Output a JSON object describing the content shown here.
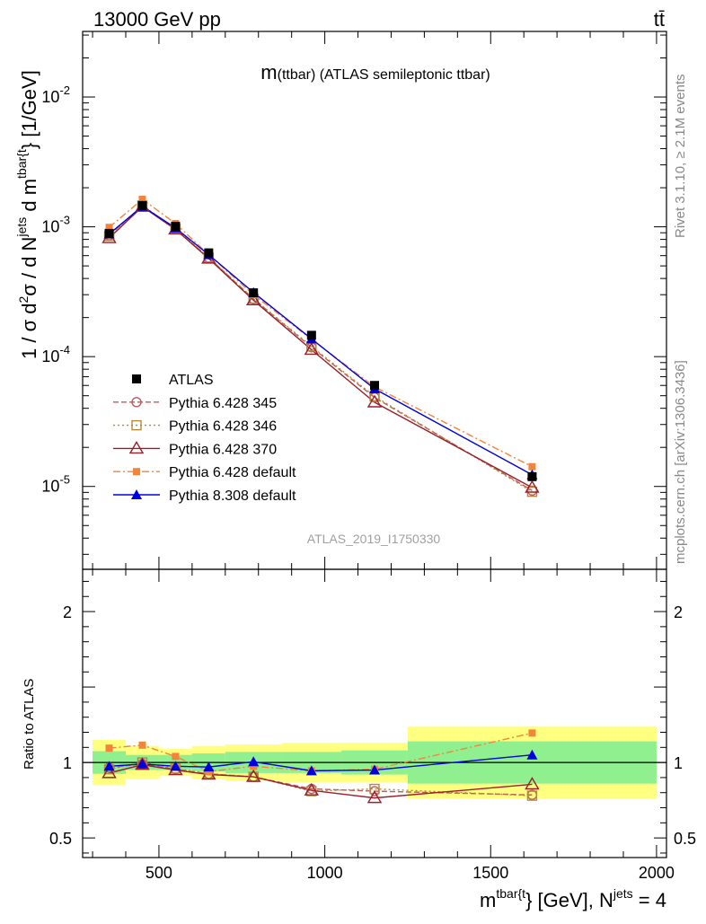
{
  "header": {
    "left_title": "13000 GeV pp",
    "right_title": "tt̄"
  },
  "plot_title": {
    "m_main": "m",
    "m_paren": "(ttbar)",
    "rest": " (ATLAS semileptonic ttbar)"
  },
  "analysis_label": "ATLAS_2019_I1750330",
  "side_labels": {
    "rivet": "Rivet 3.1.10, ≥ 2.1M events",
    "mcplots": "mcplots.cern.ch [arXiv:1306.3436]"
  },
  "y_axis_main": {
    "part1": "1 / σ d",
    "sup_2a": "2",
    "part2": "σ /  d N",
    "sup_jets": "jets",
    "part3": " d m",
    "sup_tbar": "tbar{t",
    "part4": "} [1/GeV]"
  },
  "y_axis_ratio": "Ratio to ATLAS",
  "x_axis": {
    "part1": "m",
    "sup_tbar": "tbar{t",
    "part2": "} [GeV], N",
    "sup_jets": "jets",
    "part3": " = 4"
  },
  "legend": [
    {
      "label": "ATLAS",
      "key": "atlas"
    },
    {
      "label": "Pythia 6.428 345",
      "key": "p345"
    },
    {
      "label": "Pythia 6.428 346",
      "key": "p346"
    },
    {
      "label": "Pythia 6.428 370",
      "key": "p370"
    },
    {
      "label": "Pythia 6.428 default",
      "key": "p6def"
    },
    {
      "label": "Pythia 8.308 default",
      "key": "p8def"
    }
  ],
  "chart_data": {
    "type": "line",
    "x_range": [
      270,
      2030
    ],
    "main_panel": {
      "y_scale": "log",
      "y_range": [
        2.3e-06,
        0.032
      ],
      "y_ticks": [
        {
          "value": 1e-05,
          "base": "10",
          "exp": "-5"
        },
        {
          "value": 0.0001,
          "base": "10",
          "exp": "-4"
        },
        {
          "value": 0.001,
          "base": "10",
          "exp": "-3"
        },
        {
          "value": 0.01,
          "base": "10",
          "exp": "-2"
        }
      ]
    },
    "ratio_panel": {
      "y_range": [
        0.37,
        2.28
      ],
      "y_ticks": [
        {
          "value": 0.5,
          "label": "0.5"
        },
        {
          "value": 1,
          "label": "1"
        },
        {
          "value": 2,
          "label": "2"
        }
      ]
    },
    "x_ticks": [
      {
        "value": 500,
        "label": "500"
      },
      {
        "value": 1000,
        "label": "1000"
      },
      {
        "value": 1500,
        "label": "1500"
      },
      {
        "value": 2000,
        "label": "2000"
      }
    ],
    "bins": [
      [
        300,
        400
      ],
      [
        400,
        500
      ],
      [
        500,
        600
      ],
      [
        600,
        700
      ],
      [
        700,
        870
      ],
      [
        870,
        1050
      ],
      [
        1050,
        1250
      ],
      [
        1250,
        2000
      ]
    ],
    "x": [
      350,
      450,
      550,
      650,
      785,
      960,
      1150,
      1625
    ],
    "atlas": {
      "values": [
        0.00089,
        0.00146,
        0.00101,
        0.00063,
        0.00031,
        0.000146,
        6e-05,
        1.19e-05
      ],
      "ratio_band_inner": [
        0.075,
        0.05,
        0.05,
        0.06,
        0.07,
        0.07,
        0.08,
        0.14
      ],
      "ratio_band_outer": [
        0.15,
        0.11,
        0.09,
        0.11,
        0.12,
        0.13,
        0.13,
        0.24
      ]
    },
    "series": [
      {
        "name": "Pythia 6.428 345",
        "key": "p345",
        "color": "#c05a5a",
        "dash": "6,3",
        "marker": "open-circle",
        "values": [
          0.00086,
          0.00145,
          0.00096,
          0.00058,
          0.000278,
          0.000118,
          4.85e-05,
          9.3e-06
        ],
        "ratio": [
          0.965,
          0.99,
          0.955,
          0.925,
          0.905,
          0.825,
          0.81,
          0.785
        ]
      },
      {
        "name": "Pythia 6.428 346",
        "key": "p346",
        "color": "#b08a3a",
        "dash": "2,3",
        "marker": "open-square",
        "values": [
          0.00085,
          0.00146,
          0.00097,
          0.00058,
          0.00028,
          0.00012,
          4.95e-05,
          9.1e-06
        ],
        "ratio": [
          0.955,
          1.0,
          0.96,
          0.925,
          0.905,
          0.81,
          0.825,
          0.78
        ]
      },
      {
        "name": "Pythia 6.428 370",
        "key": "p370",
        "color": "#9a1f2a",
        "dash": "",
        "marker": "open-triangle",
        "values": [
          0.00082,
          0.00143,
          0.000955,
          0.00057,
          0.000272,
          0.000113,
          4.45e-05,
          9.8e-06
        ],
        "ratio": [
          0.93,
          0.985,
          0.95,
          0.92,
          0.905,
          0.815,
          0.765,
          0.855
        ]
      },
      {
        "name": "Pythia 6.428 default",
        "key": "p6def",
        "color": "#f4843a",
        "dash": "8,3,2,3",
        "marker": "filled-square",
        "values": [
          0.00099,
          0.00163,
          0.00106,
          0.00061,
          0.0003,
          0.000136,
          5.85e-05,
          1.42e-05
        ],
        "ratio": [
          1.095,
          1.115,
          1.04,
          0.94,
          0.975,
          0.945,
          0.955,
          1.195
        ]
      },
      {
        "name": "Pythia 8.308 default",
        "key": "p8def",
        "color": "#0000dd",
        "dash": "",
        "marker": "filled-triangle",
        "values": [
          0.00088,
          0.00144,
          0.00098,
          0.00061,
          0.000312,
          0.000137,
          5.65e-05,
          1.23e-05
        ],
        "ratio": [
          0.975,
          0.99,
          0.975,
          0.97,
          1.005,
          0.945,
          0.95,
          1.05
        ]
      }
    ]
  }
}
